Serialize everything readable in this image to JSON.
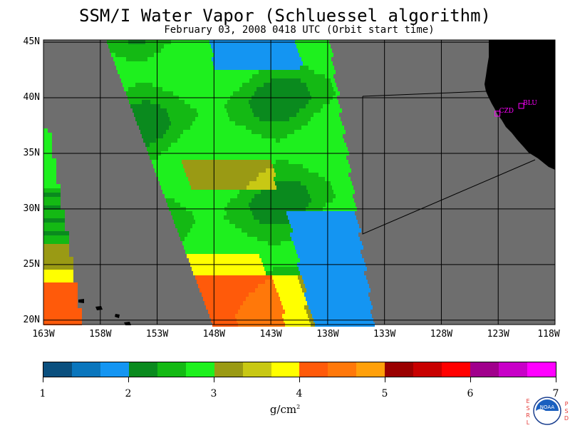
{
  "title": "SSM/I Water Vapor (Schluessel algorithm)",
  "subtitle": "February 03, 2008  0418 UTC  (Orbit start time)",
  "map": {
    "lat_labels": [
      "45N",
      "40N",
      "35N",
      "30N",
      "25N",
      "20N"
    ],
    "lat_values": [
      45,
      40,
      35,
      30,
      25,
      20
    ],
    "lon_labels": [
      "163W",
      "158W",
      "153W",
      "148W",
      "143W",
      "138W",
      "133W",
      "128W",
      "123W",
      "118W"
    ],
    "lon_values": [
      -163,
      -158,
      -153,
      -148,
      -143,
      -138,
      -133,
      -128,
      -123,
      -118
    ],
    "lat_range": [
      19.6,
      45.2
    ],
    "lon_range": [
      -163,
      -118
    ],
    "background_color": "#6e6e6e",
    "land_color": "#000000",
    "stations": [
      {
        "label": "CZD",
        "lon": -123.1,
        "lat": 38.6,
        "color": "#ff00ff"
      },
      {
        "label": "BLU",
        "lon": -121.0,
        "lat": 39.3,
        "color": "#ff00ff"
      }
    ]
  },
  "colorbar": {
    "colors": [
      "#0a4f7e",
      "#0a76bd",
      "#1495f2",
      "#0a8a1e",
      "#14b914",
      "#1ef01e",
      "#9a9a14",
      "#c8c814",
      "#ffff00",
      "#ff5a0a",
      "#ff780a",
      "#ffa00a",
      "#9a0000",
      "#c80000",
      "#ff0000",
      "#a0008c",
      "#c800c8",
      "#ff00ff"
    ],
    "tick_labels": [
      "1",
      "2",
      "3",
      "4",
      "5",
      "6",
      "7"
    ],
    "units_base": "g/cm",
    "units_exp": "2"
  },
  "credits": {
    "left": [
      "E",
      "S",
      "R",
      "L"
    ],
    "right": [
      "P",
      "S",
      "D"
    ],
    "logo_text": "NOAA"
  }
}
